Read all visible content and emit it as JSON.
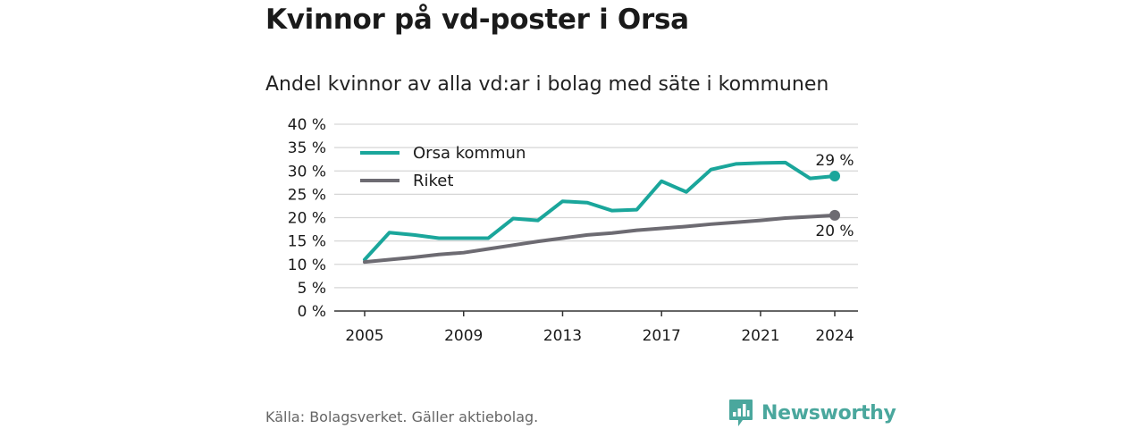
{
  "title": "Kvinnor på vd-poster i Orsa",
  "subtitle": "Andel kvinnor av alla vd:ar i bolag med säte i kommunen",
  "source": "Källa: Bolagsverket. Gäller aktiebolag.",
  "brand": "Newsworthy",
  "colors": {
    "orsa": "#1aa69b",
    "riket": "#6d6b72",
    "grid": "#d6d6d6",
    "brand": "#4aa79d"
  },
  "chart_data": {
    "type": "line",
    "x": [
      2005,
      2006,
      2007,
      2008,
      2009,
      2010,
      2011,
      2012,
      2013,
      2014,
      2015,
      2016,
      2017,
      2018,
      2019,
      2020,
      2021,
      2022,
      2023,
      2024
    ],
    "series": [
      {
        "name": "Orsa kommun",
        "color": "#1aa69b",
        "values": [
          11,
          16.8,
          16.3,
          15.6,
          15.6,
          15.6,
          19.8,
          19.4,
          23.5,
          23.2,
          21.5,
          21.7,
          27.8,
          25.5,
          30.3,
          31.5,
          31.7,
          31.8,
          28.4,
          28.9
        ],
        "end_label": "29 %"
      },
      {
        "name": "Riket",
        "color": "#6d6b72",
        "values": [
          10.5,
          11,
          11.5,
          12.1,
          12.5,
          13.3,
          14.1,
          14.9,
          15.6,
          16.3,
          16.7,
          17.3,
          17.7,
          18.1,
          18.6,
          19,
          19.4,
          19.9,
          20.2,
          20.5
        ],
        "end_label": "20 %"
      }
    ],
    "y_ticks": [
      "0 %",
      "5 %",
      "10 %",
      "15 %",
      "20 %",
      "25 %",
      "30 %",
      "35 %",
      "40 %"
    ],
    "x_ticks": [
      "2005",
      "2009",
      "2013",
      "2017",
      "2021",
      "2024"
    ],
    "ylim": [
      0,
      40
    ],
    "xlim": [
      2005,
      2024
    ],
    "legend_position": "top-left",
    "grid": true
  }
}
